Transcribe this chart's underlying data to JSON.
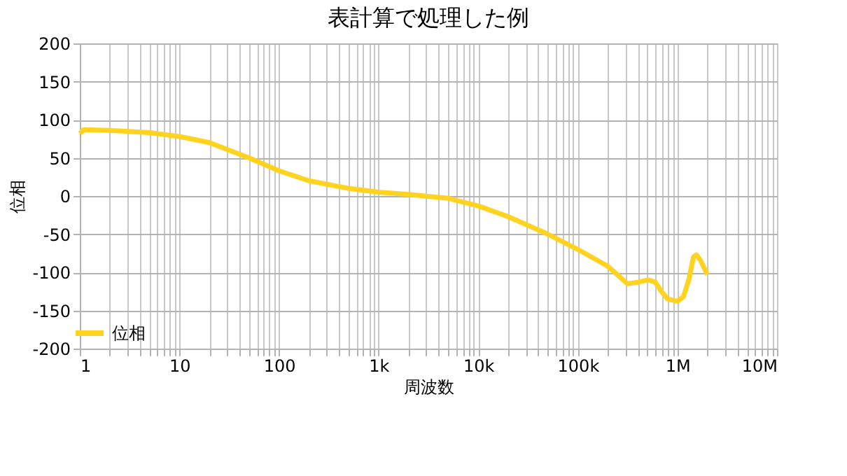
{
  "chart_data": {
    "type": "line",
    "title": "表計算で処理した例",
    "xlabel": "周波数",
    "ylabel": "位相",
    "log": "x",
    "grid": true,
    "legend": "left",
    "marker": "none",
    "line_style": "solid",
    "xlim": [
      1,
      10000000
    ],
    "ylim": [
      -200,
      200
    ],
    "xticks": [
      {
        "value": 1,
        "label": "1"
      },
      {
        "value": 2,
        "label": null
      },
      {
        "value": 3,
        "label": null
      },
      {
        "value": 4,
        "label": null
      },
      {
        "value": 5,
        "label": null
      },
      {
        "value": 6,
        "label": null
      },
      {
        "value": 7,
        "label": null
      },
      {
        "value": 8,
        "label": null
      },
      {
        "value": 9,
        "label": null
      },
      {
        "value": 10,
        "label": "10"
      },
      {
        "value": 20,
        "label": null
      },
      {
        "value": 30,
        "label": null
      },
      {
        "value": 40,
        "label": null
      },
      {
        "value": 50,
        "label": null
      },
      {
        "value": 60,
        "label": null
      },
      {
        "value": 70,
        "label": null
      },
      {
        "value": 80,
        "label": null
      },
      {
        "value": 90,
        "label": null
      },
      {
        "value": 100,
        "label": "100"
      },
      {
        "value": 200,
        "label": null
      },
      {
        "value": 300,
        "label": null
      },
      {
        "value": 400,
        "label": null
      },
      {
        "value": 500,
        "label": null
      },
      {
        "value": 600,
        "label": null
      },
      {
        "value": 700,
        "label": null
      },
      {
        "value": 800,
        "label": null
      },
      {
        "value": 900,
        "label": null
      },
      {
        "value": 1000,
        "label": "1k"
      },
      {
        "value": 2000,
        "label": null
      },
      {
        "value": 3000,
        "label": null
      },
      {
        "value": 4000,
        "label": null
      },
      {
        "value": 5000,
        "label": null
      },
      {
        "value": 6000,
        "label": null
      },
      {
        "value": 7000,
        "label": null
      },
      {
        "value": 8000,
        "label": null
      },
      {
        "value": 9000,
        "label": null
      },
      {
        "value": 10000,
        "label": "10k"
      },
      {
        "value": 20000,
        "label": null
      },
      {
        "value": 30000,
        "label": null
      },
      {
        "value": 40000,
        "label": null
      },
      {
        "value": 50000,
        "label": null
      },
      {
        "value": 60000,
        "label": null
      },
      {
        "value": 70000,
        "label": null
      },
      {
        "value": 80000,
        "label": null
      },
      {
        "value": 90000,
        "label": null
      },
      {
        "value": 100000,
        "label": "100k"
      },
      {
        "value": 200000,
        "label": null
      },
      {
        "value": 300000,
        "label": null
      },
      {
        "value": 400000,
        "label": null
      },
      {
        "value": 500000,
        "label": null
      },
      {
        "value": 600000,
        "label": null
      },
      {
        "value": 700000,
        "label": null
      },
      {
        "value": 800000,
        "label": null
      },
      {
        "value": 900000,
        "label": null
      },
      {
        "value": 1000000,
        "label": "1M"
      },
      {
        "value": 2000000,
        "label": null
      },
      {
        "value": 3000000,
        "label": null
      },
      {
        "value": 4000000,
        "label": null
      },
      {
        "value": 5000000,
        "label": null
      },
      {
        "value": 6000000,
        "label": null
      },
      {
        "value": 7000000,
        "label": null
      },
      {
        "value": 8000000,
        "label": null
      },
      {
        "value": 9000000,
        "label": null
      },
      {
        "value": 10000000,
        "label": "10M"
      }
    ],
    "yticks": [
      -200,
      -150,
      -100,
      -50,
      0,
      50,
      100,
      150,
      200
    ],
    "series": [
      {
        "name": "位相",
        "color": "#ffd320",
        "x": [
          1,
          1.1,
          2,
          5,
          10,
          20,
          50,
          100,
          200,
          500,
          1000,
          2000,
          5000,
          10000,
          20000,
          50000,
          100000,
          200000,
          316000,
          400000,
          510000,
          600000,
          690000,
          800000,
          1000000,
          1150000,
          1300000,
          1450000,
          1550000,
          1700000,
          2000000
        ],
        "values": [
          82,
          87,
          86,
          83,
          78,
          70,
          50,
          33,
          20,
          10,
          5,
          2,
          -3,
          -13,
          -27,
          -50,
          -70,
          -92,
          -115,
          -113,
          -110,
          -113,
          -125,
          -135,
          -138,
          -132,
          -110,
          -80,
          -77,
          -84,
          -103
        ]
      }
    ]
  }
}
